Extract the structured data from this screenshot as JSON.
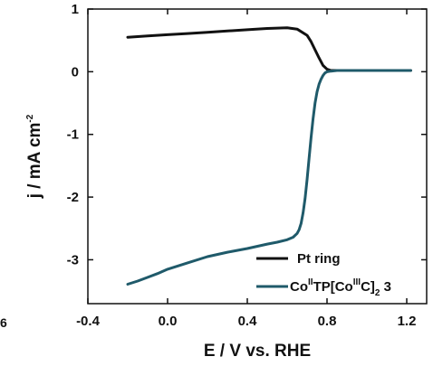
{
  "chart_data": {
    "type": "line",
    "xlabel": "E / V vs. RHE",
    "ylabel": {
      "pre": "j / mA cm",
      "sup": "-2"
    },
    "xlim": [
      -0.4,
      1.3
    ],
    "ylim": [
      -3.7,
      1.0
    ],
    "xticks": [
      -0.4,
      0.0,
      0.4,
      0.8,
      1.2
    ],
    "xtick_labels": [
      "-0.4",
      "0.0",
      "0.4",
      "0.8",
      "1.2"
    ],
    "yticks": [
      1,
      0,
      -1,
      -2,
      -3
    ],
    "ytick_labels": [
      "1",
      "0",
      "-1",
      "-2",
      "-3"
    ],
    "grid": false,
    "legend_position": "bottom-right",
    "series": [
      {
        "name": "Pt ring",
        "color": "#111111",
        "x": [
          -0.2,
          -0.1,
          0.0,
          0.1,
          0.2,
          0.3,
          0.4,
          0.5,
          0.6,
          0.65,
          0.7,
          0.72,
          0.74,
          0.76,
          0.78,
          0.8,
          0.82,
          0.85,
          0.9,
          1.0,
          1.1,
          1.22
        ],
        "y": [
          0.55,
          0.57,
          0.59,
          0.61,
          0.63,
          0.65,
          0.67,
          0.69,
          0.7,
          0.68,
          0.58,
          0.48,
          0.35,
          0.22,
          0.1,
          0.04,
          0.02,
          0.02,
          0.02,
          0.02,
          0.02,
          0.02
        ]
      },
      {
        "name_parts": [
          {
            "t": "Co",
            "s": "normal"
          },
          {
            "t": "II",
            "s": "sup"
          },
          {
            "t": "TP[Co",
            "s": "normal"
          },
          {
            "t": "III",
            "s": "sup"
          },
          {
            "t": "C]",
            "s": "normal"
          },
          {
            "t": "2",
            "s": "sub"
          },
          {
            "t": " 3",
            "s": "normal"
          }
        ],
        "color": "#1f5a6a",
        "x": [
          -0.2,
          -0.15,
          -0.1,
          -0.05,
          0.0,
          0.1,
          0.2,
          0.3,
          0.4,
          0.5,
          0.55,
          0.6,
          0.63,
          0.65,
          0.66,
          0.67,
          0.68,
          0.69,
          0.7,
          0.71,
          0.72,
          0.73,
          0.74,
          0.75,
          0.76,
          0.77,
          0.78,
          0.79,
          0.8,
          0.82,
          0.85,
          0.9,
          1.0,
          1.1,
          1.22
        ],
        "y": [
          -3.39,
          -3.34,
          -3.28,
          -3.22,
          -3.15,
          -3.05,
          -2.95,
          -2.88,
          -2.82,
          -2.75,
          -2.72,
          -2.68,
          -2.64,
          -2.58,
          -2.52,
          -2.42,
          -2.25,
          -2.02,
          -1.72,
          -1.38,
          -1.05,
          -0.75,
          -0.5,
          -0.32,
          -0.2,
          -0.12,
          -0.06,
          -0.02,
          0.0,
          0.01,
          0.02,
          0.02,
          0.02,
          0.02,
          0.02
        ]
      }
    ]
  },
  "edge_text": "6"
}
